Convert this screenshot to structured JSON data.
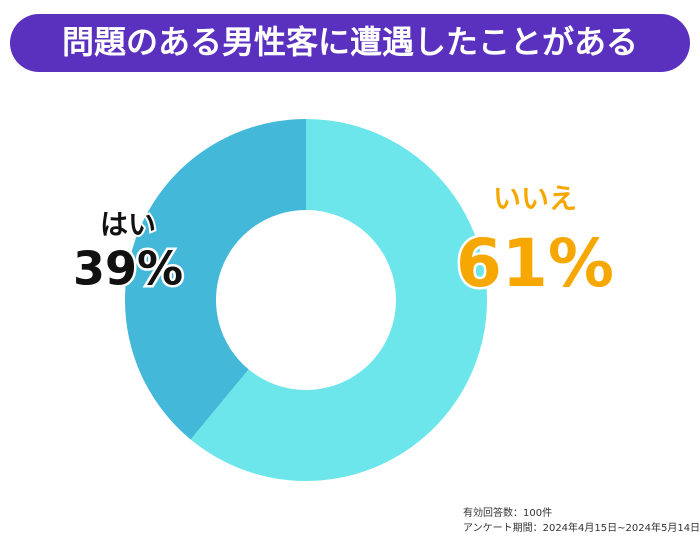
{
  "chart_data": {
    "type": "pie",
    "title": "問題のある男性客に遭遇したことがある",
    "categories": [
      "いいえ",
      "はい"
    ],
    "values": [
      61,
      39
    ],
    "value_labels": [
      "61%",
      "39%"
    ],
    "colors": [
      "#6ce6ea",
      "#44b8d8"
    ],
    "label_colors": [
      "#f7a800",
      "#111111"
    ],
    "notes": [
      "有効回答数：100件",
      "アンケート期間：2024年4月15日~2024年5月14日"
    ]
  }
}
